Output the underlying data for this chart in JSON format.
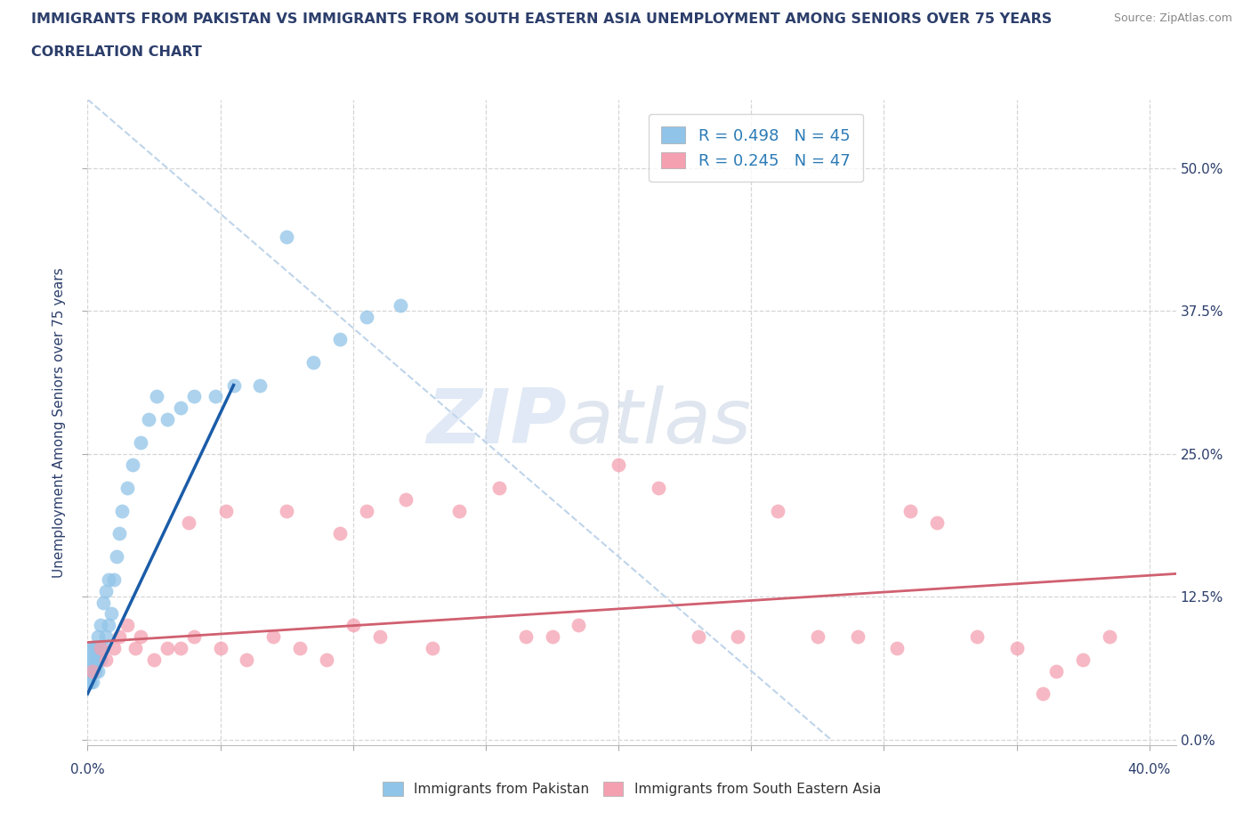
{
  "title_line1": "IMMIGRANTS FROM PAKISTAN VS IMMIGRANTS FROM SOUTH EASTERN ASIA UNEMPLOYMENT AMONG SENIORS OVER 75 YEARS",
  "title_line2": "CORRELATION CHART",
  "source": "Source: ZipAtlas.com",
  "xlabel_pakistan": "Immigrants from Pakistan",
  "xlabel_sea": "Immigrants from South Eastern Asia",
  "ylabel": "Unemployment Among Seniors over 75 years",
  "R_pakistan": 0.498,
  "N_pakistan": 45,
  "R_sea": 0.245,
  "N_sea": 47,
  "color_pakistan": "#90c4e8",
  "color_sea": "#f4a0b0",
  "color_pakistan_line": "#1a5ca8",
  "color_sea_line": "#d06070",
  "color_diag": "#b8d0e8",
  "xlim": [
    0.0,
    0.41
  ],
  "ylim": [
    -0.005,
    0.56
  ],
  "xticks": [
    0.0,
    0.05,
    0.1,
    0.15,
    0.2,
    0.25,
    0.3,
    0.35,
    0.4
  ],
  "yticks": [
    0.0,
    0.125,
    0.25,
    0.375,
    0.5
  ],
  "ytick_labels_right": [
    "0.0%",
    "12.5%",
    "25.0%",
    "37.5%",
    "50.0%"
  ],
  "xtick_label_left": "0.0%",
  "xtick_label_right": "40.0%",
  "watermark_part1": "ZIP",
  "watermark_part2": "atlas",
  "background_color": "#ffffff",
  "grid_color": "#cccccc",
  "title_color": "#2c3e6b",
  "axis_color": "#2c3e6b",
  "legend_color": "#2c7bb6",
  "pakistan_x": [
    0.001,
    0.001,
    0.001,
    0.001,
    0.001,
    0.002,
    0.002,
    0.002,
    0.002,
    0.003,
    0.003,
    0.003,
    0.004,
    0.004,
    0.004,
    0.005,
    0.005,
    0.005,
    0.006,
    0.006,
    0.007,
    0.007,
    0.008,
    0.008,
    0.009,
    0.01,
    0.011,
    0.012,
    0.013,
    0.015,
    0.017,
    0.02,
    0.023,
    0.026,
    0.03,
    0.035,
    0.04,
    0.048,
    0.055,
    0.065,
    0.075,
    0.085,
    0.095,
    0.105,
    0.118
  ],
  "pakistan_y": [
    0.05,
    0.05,
    0.06,
    0.07,
    0.08,
    0.05,
    0.06,
    0.07,
    0.08,
    0.06,
    0.07,
    0.08,
    0.06,
    0.07,
    0.09,
    0.07,
    0.08,
    0.1,
    0.08,
    0.12,
    0.09,
    0.13,
    0.1,
    0.14,
    0.11,
    0.14,
    0.16,
    0.18,
    0.2,
    0.22,
    0.24,
    0.26,
    0.28,
    0.3,
    0.28,
    0.29,
    0.3,
    0.3,
    0.31,
    0.31,
    0.44,
    0.33,
    0.35,
    0.37,
    0.38
  ],
  "pakistan_line_x": [
    0.0,
    0.055
  ],
  "pakistan_line_y": [
    0.04,
    0.31
  ],
  "sea_x": [
    0.002,
    0.005,
    0.007,
    0.01,
    0.012,
    0.015,
    0.018,
    0.02,
    0.025,
    0.03,
    0.035,
    0.04,
    0.05,
    0.06,
    0.07,
    0.08,
    0.09,
    0.1,
    0.11,
    0.12,
    0.13,
    0.14,
    0.155,
    0.165,
    0.175,
    0.185,
    0.2,
    0.215,
    0.23,
    0.245,
    0.26,
    0.275,
    0.29,
    0.305,
    0.32,
    0.335,
    0.35,
    0.365,
    0.375,
    0.385,
    0.038,
    0.052,
    0.075,
    0.095,
    0.105,
    0.31,
    0.36
  ],
  "sea_y": [
    0.06,
    0.08,
    0.07,
    0.08,
    0.09,
    0.1,
    0.08,
    0.09,
    0.07,
    0.08,
    0.08,
    0.09,
    0.08,
    0.07,
    0.09,
    0.08,
    0.07,
    0.1,
    0.09,
    0.21,
    0.08,
    0.2,
    0.22,
    0.09,
    0.09,
    0.1,
    0.24,
    0.22,
    0.09,
    0.09,
    0.2,
    0.09,
    0.09,
    0.08,
    0.19,
    0.09,
    0.08,
    0.06,
    0.07,
    0.09,
    0.19,
    0.2,
    0.2,
    0.18,
    0.2,
    0.2,
    0.04
  ],
  "sea_line_x": [
    0.0,
    0.41
  ],
  "sea_line_y": [
    0.085,
    0.145
  ]
}
